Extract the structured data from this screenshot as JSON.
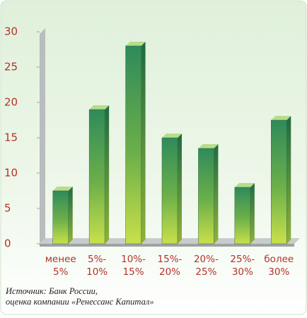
{
  "chart_data": {
    "type": "bar",
    "categories": [
      "менее 5%",
      "5%- 10%",
      "10%- 15%",
      "15%- 20%",
      "20%- 25%",
      "25%- 30%",
      "более 30%"
    ],
    "values": [
      7.5,
      19,
      28,
      15,
      13.5,
      8,
      17.5
    ],
    "color": "#3f9a5c",
    "ylim": [
      0,
      30
    ],
    "yticks": [
      0,
      5,
      10,
      15,
      20,
      25,
      30
    ],
    "source": [
      "Источник: Банк России,",
      "оценка компании «Ренессанс Капитал»"
    ]
  }
}
